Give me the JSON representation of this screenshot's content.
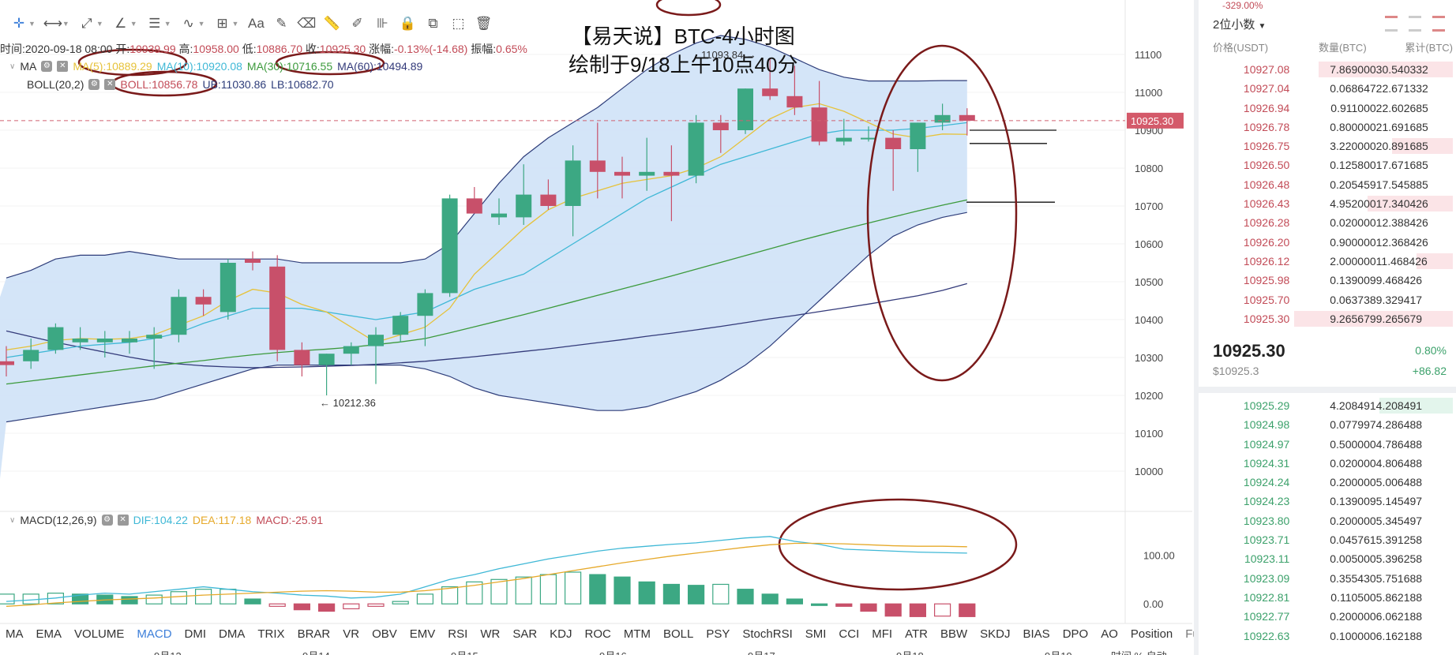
{
  "title": {
    "line1": "【易天说】BTC-4小时图",
    "line2": "绘制于9/18上午10点40分"
  },
  "info": {
    "time_label": "时间:",
    "time": "2020-09-18 08:00",
    "open_label": "开:",
    "open": "10939.99",
    "high_label": "高:",
    "high": "10958.00",
    "low_label": "低:",
    "low": "10886.70",
    "close_label": "收:",
    "close": "10925.30",
    "change_label": "涨幅:",
    "change": "-0.13%(-14.68)",
    "amp_label": "振幅:",
    "amp": "0.65%"
  },
  "ma_line": {
    "label": "MA",
    "ma5": "MA(5):10889.29",
    "ma10": "MA(10):10920.08",
    "ma30": "MA(30):10716.55",
    "ma60": "MA(60):10494.89"
  },
  "boll_line": {
    "label": "BOLL(20,2)",
    "boll": "BOLL:10856.78",
    "ub": "UB:11030.86",
    "lb": "LB:10682.70"
  },
  "macd_line": {
    "label": "MACD(12,26,9)",
    "dif": "DIF:104.22",
    "dea": "DEA:117.18",
    "macd": "MACD:-25.91"
  },
  "annotations": {
    "high_mark": "11093.84 →",
    "low_mark": "← 10212.36",
    "current_price": "10925.30"
  },
  "tabs": [
    "MA",
    "EMA",
    "VOLUME",
    "MACD",
    "DMI",
    "DMA",
    "TRIX",
    "BRAR",
    "VR",
    "OBV",
    "EMV",
    "RSI",
    "WR",
    "SAR",
    "KDJ",
    "ROC",
    "MTM",
    "BOLL",
    "PSY",
    "StochRSI",
    "SMI",
    "CCI",
    "MFI",
    "ATR",
    "BBW",
    "SKDJ",
    "BIAS",
    "DPO",
    "AO",
    "Position",
    "Fundflow"
  ],
  "active_tab": "MACD",
  "dates": [
    "9月13",
    "9月14",
    "9月15",
    "9月16",
    "9月17",
    "9月18",
    "9月19"
  ],
  "colors": {
    "up": "#3ca883",
    "down": "#c8506a",
    "ma5": "#e6c23a",
    "ma10": "#3fb8d6",
    "ma30": "#3c9a3c",
    "ma60": "#333a7a",
    "boll_mid": "#c24b57",
    "band": "#cfe2f7",
    "band_line": "#2e3d7a",
    "ellipse": "#7a1a1a"
  },
  "chart_data": {
    "type": "candlestick",
    "ylim": [
      9900,
      11150
    ],
    "y_ticks": [
      10000,
      10100,
      10200,
      10300,
      10400,
      10500,
      10600,
      10700,
      10800,
      10900,
      11000,
      11100
    ],
    "candles": [
      [
        10290,
        10330,
        10250,
        10280
      ],
      [
        10290,
        10350,
        10270,
        10320
      ],
      [
        10320,
        10390,
        10310,
        10380
      ],
      [
        10340,
        10380,
        10320,
        10350
      ],
      [
        10340,
        10370,
        10300,
        10350
      ],
      [
        10340,
        10370,
        10310,
        10350
      ],
      [
        10350,
        10380,
        10270,
        10360
      ],
      [
        10360,
        10480,
        10340,
        10460
      ],
      [
        10460,
        10480,
        10410,
        10440
      ],
      [
        10420,
        10560,
        10400,
        10550
      ],
      [
        10560,
        10580,
        10530,
        10550
      ],
      [
        10540,
        10570,
        10290,
        10320
      ],
      [
        10320,
        10340,
        10250,
        10280
      ],
      [
        10280,
        10310,
        10200,
        10310
      ],
      [
        10310,
        10340,
        10280,
        10330
      ],
      [
        10330,
        10380,
        10230,
        10360
      ],
      [
        10360,
        10420,
        10340,
        10410
      ],
      [
        10410,
        10480,
        10330,
        10470
      ],
      [
        10470,
        10730,
        10460,
        10720
      ],
      [
        10720,
        10750,
        10680,
        10680
      ],
      [
        10670,
        10720,
        10650,
        10680
      ],
      [
        10670,
        10810,
        10650,
        10730
      ],
      [
        10730,
        10770,
        10690,
        10700
      ],
      [
        10700,
        10860,
        10620,
        10820
      ],
      [
        10820,
        10920,
        10720,
        10790
      ],
      [
        10790,
        10830,
        10720,
        10780
      ],
      [
        10780,
        10880,
        10740,
        10790
      ],
      [
        10790,
        10860,
        10660,
        10780
      ],
      [
        10780,
        10940,
        10760,
        10920
      ],
      [
        10920,
        10940,
        10840,
        10900
      ],
      [
        10900,
        11010,
        10890,
        11010
      ],
      [
        11010,
        11090,
        10980,
        10990
      ],
      [
        10990,
        11070,
        10940,
        10960
      ],
      [
        10960,
        11030,
        10860,
        10870
      ],
      [
        10870,
        10930,
        10860,
        10880
      ],
      [
        10880,
        10910,
        10870,
        10880
      ],
      [
        10880,
        10900,
        10740,
        10850
      ],
      [
        10850,
        10920,
        10790,
        10920
      ],
      [
        10920,
        10970,
        10900,
        10940
      ],
      [
        10940,
        10958,
        10886,
        10925
      ]
    ],
    "ma5": [
      10320,
      10330,
      10345,
      10350,
      10348,
      10350,
      10360,
      10385,
      10410,
      10450,
      10480,
      10470,
      10440,
      10420,
      10380,
      10340,
      10360,
      10380,
      10430,
      10520,
      10580,
      10640,
      10690,
      10720,
      10740,
      10760,
      10770,
      10780,
      10800,
      10830,
      10880,
      10930,
      10960,
      10970,
      10950,
      10920,
      10890,
      10880,
      10890,
      10889
    ],
    "ma10": [
      10300,
      10310,
      10320,
      10330,
      10335,
      10340,
      10350,
      10365,
      10390,
      10410,
      10430,
      10430,
      10430,
      10420,
      10410,
      10400,
      10410,
      10420,
      10450,
      10480,
      10500,
      10520,
      10560,
      10600,
      10640,
      10680,
      10720,
      10750,
      10780,
      10810,
      10830,
      10850,
      10870,
      10890,
      10900,
      10900,
      10900,
      10905,
      10912,
      10920
    ],
    "ma30": [
      10230,
      10238,
      10246,
      10254,
      10262,
      10270,
      10278,
      10285,
      10292,
      10300,
      10307,
      10313,
      10318,
      10322,
      10327,
      10334,
      10341,
      10350,
      10365,
      10381,
      10397,
      10413,
      10430,
      10447,
      10464,
      10481,
      10498,
      10515,
      10533,
      10551,
      10569,
      10587,
      10605,
      10622,
      10639,
      10655,
      10671,
      10687,
      10702,
      10716
    ],
    "ma60": [
      10370,
      10355,
      10340,
      10327,
      10314,
      10301,
      10290,
      10283,
      10278,
      10275,
      10273,
      10274,
      10275,
      10277,
      10279,
      10282,
      10286,
      10290,
      10296,
      10302,
      10309,
      10316,
      10323,
      10331,
      10339,
      10347,
      10356,
      10364,
      10373,
      10382,
      10392,
      10402,
      10411,
      10421,
      10431,
      10441,
      10452,
      10463,
      10477,
      10495
    ],
    "ub": [
      10510,
      10530,
      10560,
      10570,
      10570,
      10580,
      10570,
      10560,
      10560,
      10560,
      10560,
      10560,
      10550,
      10550,
      10550,
      10550,
      10550,
      10560,
      10600,
      10680,
      10760,
      10830,
      10880,
      10920,
      10960,
      11010,
      11060,
      11100,
      11130,
      11150,
      11140,
      11120,
      11090,
      11060,
      11040,
      11030,
      11030,
      11030,
      11031,
      11031
    ],
    "lb": [
      10130,
      10140,
      10150,
      10160,
      10170,
      10180,
      10190,
      10210,
      10230,
      10250,
      10270,
      10280,
      10280,
      10280,
      10280,
      10280,
      10280,
      10270,
      10250,
      10220,
      10200,
      10190,
      10180,
      10170,
      10160,
      10160,
      10170,
      10190,
      10210,
      10240,
      10280,
      10330,
      10390,
      10450,
      10510,
      10570,
      10620,
      10650,
      10670,
      10683
    ],
    "macd": {
      "hist": [
        20,
        20,
        22,
        20,
        18,
        15,
        18,
        25,
        30,
        30,
        10,
        -5,
        -12,
        -15,
        -10,
        -5,
        5,
        20,
        35,
        45,
        50,
        55,
        60,
        65,
        60,
        55,
        45,
        40,
        38,
        40,
        30,
        20,
        10,
        0,
        -5,
        -15,
        -25,
        -26,
        -25,
        -26
      ],
      "dif": [
        5,
        8,
        12,
        18,
        22,
        20,
        25,
        30,
        35,
        30,
        25,
        22,
        18,
        16,
        12,
        14,
        20,
        35,
        50,
        60,
        72,
        82,
        92,
        100,
        108,
        114,
        118,
        122,
        125,
        130,
        135,
        138,
        128,
        122,
        112,
        110,
        108,
        106,
        105,
        104
      ],
      "dea": [
        -5,
        -2,
        2,
        5,
        8,
        10,
        12,
        15,
        18,
        20,
        22,
        24,
        26,
        27,
        26,
        24,
        24,
        27,
        32,
        38,
        45,
        52,
        60,
        68,
        76,
        84,
        91,
        98,
        104,
        110,
        116,
        121,
        124,
        124,
        123,
        121,
        119,
        118,
        118,
        117
      ],
      "ylim": [
        -40,
        170
      ]
    }
  },
  "orderbook": {
    "top_text": "-329.00%",
    "decimals": "2位小数",
    "head": [
      "价格(USDT)",
      "数量(BTC)",
      "累计(BTC)"
    ],
    "asks": [
      [
        "10927.08",
        "7.869000",
        "30.540332"
      ],
      [
        "10927.04",
        "0.068647",
        "22.671332"
      ],
      [
        "10926.94",
        "0.911000",
        "22.602685"
      ],
      [
        "10926.78",
        "0.800000",
        "21.691685"
      ],
      [
        "10926.75",
        "3.220000",
        "20.891685"
      ],
      [
        "10926.50",
        "0.125800",
        "17.671685"
      ],
      [
        "10926.48",
        "0.205459",
        "17.545885"
      ],
      [
        "10926.43",
        "4.952000",
        "17.340426"
      ],
      [
        "10926.28",
        "0.020000",
        "12.388426"
      ],
      [
        "10926.20",
        "0.900000",
        "12.368426"
      ],
      [
        "10926.12",
        "2.000000",
        "11.468426"
      ],
      [
        "10925.98",
        "0.139009",
        "9.468426"
      ],
      [
        "10925.70",
        "0.063738",
        "9.329417"
      ],
      [
        "10925.30",
        "9.265679",
        "9.265679"
      ]
    ],
    "ask_fill": [
      0.55,
      0,
      0,
      0,
      0.25,
      0,
      0,
      0.35,
      0,
      0,
      0.15,
      0,
      0,
      0.65
    ],
    "mid": {
      "price": "10925.30",
      "usd": "$10925.3",
      "pct": "0.80%",
      "change": "+86.82"
    },
    "bids": [
      [
        "10925.29",
        "4.208491",
        "4.208491"
      ],
      [
        "10924.98",
        "0.077997",
        "4.286488"
      ],
      [
        "10924.97",
        "0.500000",
        "4.786488"
      ],
      [
        "10924.31",
        "0.020000",
        "4.806488"
      ],
      [
        "10924.24",
        "0.200000",
        "5.006488"
      ],
      [
        "10924.23",
        "0.139009",
        "5.145497"
      ],
      [
        "10923.80",
        "0.200000",
        "5.345497"
      ],
      [
        "10923.71",
        "0.045761",
        "5.391258"
      ],
      [
        "10923.11",
        "0.005000",
        "5.396258"
      ],
      [
        "10923.09",
        "0.355430",
        "5.751688"
      ],
      [
        "10922.81",
        "0.110500",
        "5.862188"
      ],
      [
        "10922.77",
        "0.200000",
        "6.062188"
      ],
      [
        "10922.63",
        "0.100000",
        "6.162188"
      ]
    ],
    "bid_fill": [
      0.3,
      0,
      0,
      0,
      0,
      0,
      0,
      0,
      0,
      0,
      0,
      0,
      0
    ]
  },
  "footer": {
    "time_label": "时间",
    "pct_label": "%",
    "auto_label": "自动"
  }
}
